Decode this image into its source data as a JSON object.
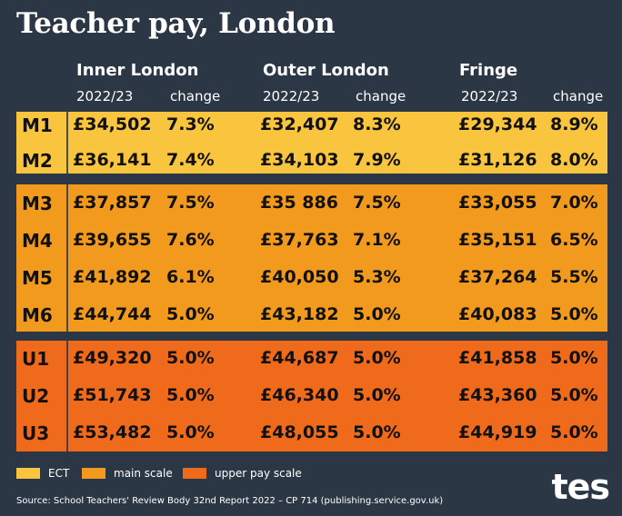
{
  "title": "Teacher pay, London",
  "colors": {
    "background": "#2b3745",
    "ect": "#f9c43e",
    "main_scale": "#f29a1d",
    "upper_pay_scale": "#f06a1c"
  },
  "chart_data": {
    "type": "table",
    "regions": [
      "Inner London",
      "Outer London",
      "Fringe"
    ],
    "subheaders": [
      "2022/23",
      "change"
    ],
    "rows": [
      {
        "grade": "M1",
        "scale": "ect",
        "values": [
          "£34,502",
          "7.3%",
          "£32,407",
          "8.3%",
          "£29,344",
          "8.9%"
        ]
      },
      {
        "grade": "M2",
        "scale": "ect",
        "values": [
          "£36,141",
          "7.4%",
          "£34,103",
          "7.9%",
          "£31,126",
          "8.0%"
        ]
      },
      {
        "grade": "M3",
        "scale": "main",
        "values": [
          "£37,857",
          "7.5%",
          "£35 886",
          "7.5%",
          "£33,055",
          "7.0%"
        ]
      },
      {
        "grade": "M4",
        "scale": "main",
        "values": [
          "£39,655",
          "7.6%",
          "£37,763",
          "7.1%",
          "£35,151",
          "6.5%"
        ]
      },
      {
        "grade": "M5",
        "scale": "main",
        "values": [
          "£41,892",
          "6.1%",
          "£40,050",
          "5.3%",
          "£37,264",
          "5.5%"
        ]
      },
      {
        "grade": "M6",
        "scale": "main",
        "values": [
          "£44,744",
          "5.0%",
          "£43,182",
          "5.0%",
          "£40,083",
          "5.0%"
        ]
      },
      {
        "grade": "U1",
        "scale": "upper",
        "values": [
          "£49,320",
          "5.0%",
          "£44,687",
          "5.0%",
          "£41,858",
          "5.0%"
        ]
      },
      {
        "grade": "U2",
        "scale": "upper",
        "values": [
          "£51,743",
          "5.0%",
          "£46,340",
          "5.0%",
          "£43,360",
          "5.0%"
        ]
      },
      {
        "grade": "U3",
        "scale": "upper",
        "values": [
          "£53,482",
          "5.0%",
          "£48,055",
          "5.0%",
          "£44,919",
          "5.0%"
        ]
      }
    ]
  },
  "legend": [
    {
      "label": "ECT",
      "color": "#f9c43e"
    },
    {
      "label": "main scale",
      "color": "#f29a1d"
    },
    {
      "label": "upper pay scale",
      "color": "#f06a1c"
    }
  ],
  "source": "Source: School Teachers' Review Body 32nd Report 2022 – CP 714 (publishing.service.gov.uk)",
  "logo": "tes"
}
